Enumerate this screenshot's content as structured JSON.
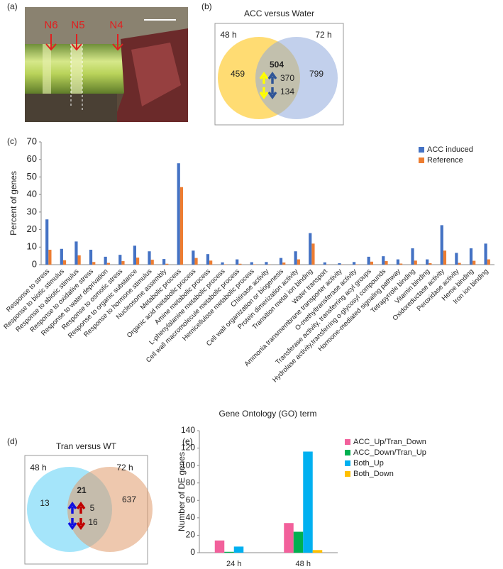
{
  "panel_labels": [
    "(a)",
    "(b)",
    "(c)",
    "(d)",
    "(e)"
  ],
  "photo": {
    "labels": [
      "N6",
      "N5",
      "N4"
    ]
  },
  "chart_data": [
    {
      "type": "venn",
      "title": "ACC versus Water",
      "sets": [
        {
          "name": "48 h",
          "color": "#ffc000",
          "only": 459
        },
        {
          "name": "72 h",
          "color": "#8faadc",
          "only": 799
        }
      ],
      "both": 504,
      "both_up": 370,
      "both_down": 134
    },
    {
      "type": "bar",
      "y_label": "Percent of genes",
      "x_label": "Gene Ontology (GO) term",
      "categories": [
        "Response to stress",
        "Response to biotic stimulus",
        "Response to abiotic stimulus",
        "Response to oxidative stress",
        "Response to water deprivation",
        "Response to osmotic stress",
        "Response to organic substance",
        "Response to hormone stimulus",
        "Nucleosome assembly",
        "Metabolic process",
        "Organic acid metabolic process",
        "Amine metabolic process",
        "L-phenylalanine metabolic process",
        "Cell wall macromolecule metabolic process",
        "Hemicellulose metabolic process",
        "Chitinase activity",
        "Cell wall organization or biogenesis",
        "Protein dimerization activity",
        "Transition metal ion binding",
        "Water transport",
        "Ammonia transmembrane transporter activity",
        "O-methyltransferase activity",
        "Transferase activity, transferring acyl groups",
        "Hydrolase activity,transferring o-glycosyl compounds",
        "Hormone-mediated signaling pathway",
        "Tetrapyrrole binding",
        "Vitamin binding",
        "Oxidoreductase activity",
        "Peroxidase activity",
        "Heme binding",
        "Iron ion binding"
      ],
      "series": [
        {
          "name": "ACC induced",
          "color": "#4472c4",
          "values": [
            25.8,
            9,
            13.2,
            8.5,
            4.5,
            5.6,
            10.8,
            7.6,
            3.2,
            57.8,
            8,
            6,
            1.3,
            3,
            1.4,
            1.5,
            3.8,
            7.6,
            18,
            1.3,
            0.8,
            1.5,
            4.5,
            4.8,
            3,
            9.3,
            3,
            22.5,
            6.7,
            9.3,
            12
          ]
        },
        {
          "name": "Reference",
          "color": "#ed7d31",
          "values": [
            8.5,
            2.5,
            5.3,
            1.5,
            1,
            2,
            4,
            2.8,
            0.5,
            44.2,
            3.8,
            2.3,
            0.2,
            0.5,
            0.2,
            0.1,
            1.2,
            3,
            12,
            0.1,
            0.1,
            0.2,
            1.7,
            2,
            0.6,
            2.3,
            0.8,
            8,
            1,
            2.2,
            3
          ]
        }
      ],
      "ylim": [
        0,
        70
      ],
      "yticks": [
        0,
        10,
        20,
        30,
        40,
        50,
        60,
        70
      ],
      "legend": "upper right"
    },
    {
      "type": "venn",
      "title": "Tran versus WT",
      "sets": [
        {
          "name": "48 h",
          "color": "#5bd0f5",
          "only": 13
        },
        {
          "name": "72 h",
          "color": "#e09b6c",
          "only": 637
        }
      ],
      "both": 21,
      "both_up": 5,
      "both_down": 16
    },
    {
      "type": "bar",
      "y_label": "Number of DE genes",
      "categories": [
        "24 h",
        "48 h"
      ],
      "series": [
        {
          "name": "ACC_Up/Tran_Down",
          "color": "#f2609b",
          "values": [
            14,
            34
          ]
        },
        {
          "name": "ACC_Down/Tran_Up",
          "color": "#00b050",
          "values": [
            1,
            24
          ]
        },
        {
          "name": "Both_Up",
          "color": "#00b0f0",
          "values": [
            7,
            116
          ]
        },
        {
          "name": "Both_Down",
          "color": "#ffc000",
          "values": [
            0,
            3
          ]
        }
      ],
      "ylim": [
        0,
        140
      ],
      "yticks": [
        0,
        20,
        40,
        60,
        80,
        100,
        120,
        140
      ],
      "legend": "right"
    }
  ]
}
